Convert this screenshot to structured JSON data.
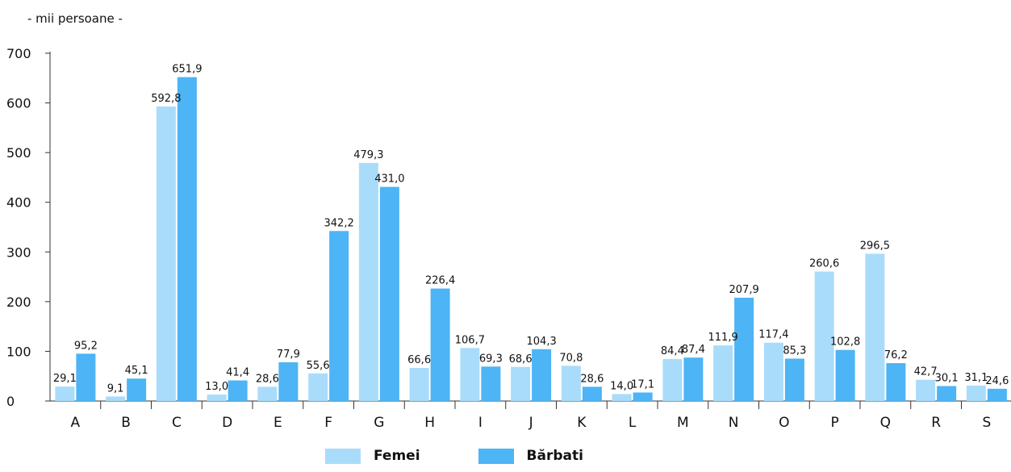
{
  "unit_label": "- mii persoane -",
  "colors": {
    "femei": "#a9dcfb",
    "barbati": "#4db4f5",
    "axis": "#333333"
  },
  "chart_data": {
    "type": "bar",
    "title": "",
    "xlabel": "",
    "ylabel": "- mii persoane -",
    "ylim": [
      0,
      700
    ],
    "yticks": [
      0,
      100,
      200,
      300,
      400,
      500,
      600,
      700
    ],
    "grid": false,
    "legend_position": "bottom",
    "categories": [
      "A",
      "B",
      "C",
      "D",
      "E",
      "F",
      "G",
      "H",
      "I",
      "J",
      "K",
      "L",
      "M",
      "N",
      "O",
      "P",
      "Q",
      "R",
      "S"
    ],
    "series": [
      {
        "name": "Femei",
        "values": [
          29.1,
          9.1,
          592.8,
          13.0,
          28.6,
          55.6,
          479.3,
          66.6,
          106.7,
          68.6,
          70.8,
          14.0,
          84.4,
          111.9,
          117.4,
          260.6,
          296.5,
          42.7,
          31.1
        ],
        "labels": [
          "29,1",
          "9,1",
          "592,8",
          "13,0",
          "28,6",
          "55,6",
          "479,3",
          "66,6",
          "106,7",
          "68,6",
          "70,8",
          "14,0",
          "84,4",
          "111,9",
          "117,4",
          "260,6",
          "296,5",
          "42,7",
          "31,1"
        ]
      },
      {
        "name": "Bărbati",
        "values": [
          95.2,
          45.1,
          651.9,
          41.4,
          77.9,
          342.2,
          431.0,
          226.4,
          69.3,
          104.3,
          28.6,
          17.1,
          87.4,
          207.9,
          85.3,
          102.8,
          76.2,
          30.1,
          24.6
        ],
        "labels": [
          "95,2",
          "45,1",
          "651,9",
          "41,4",
          "77,9",
          "342,2",
          "431,0",
          "226,4",
          "69,3",
          "104,3",
          "28,6",
          "17,1",
          "87,4",
          "207,9",
          "85,3",
          "102,8",
          "76,2",
          "30,1",
          "24,6"
        ]
      }
    ]
  }
}
